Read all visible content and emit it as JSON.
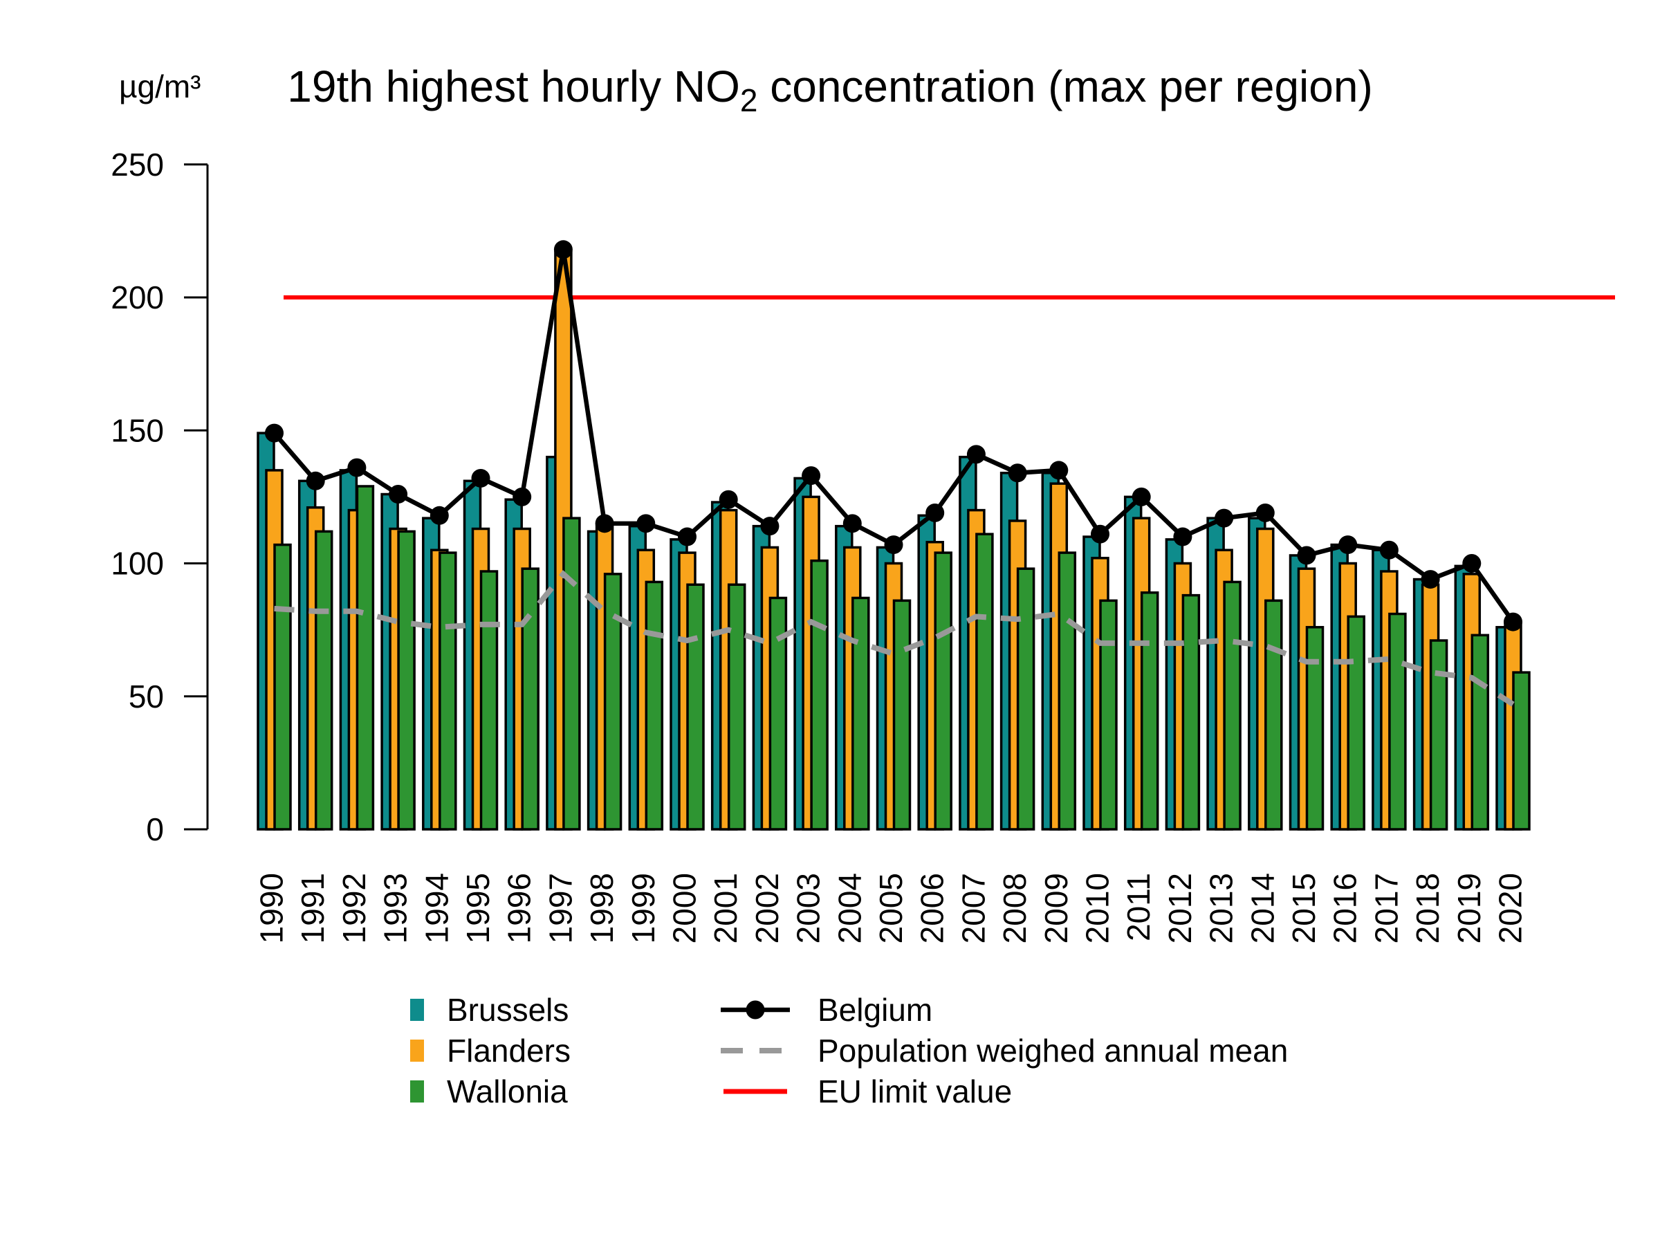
{
  "title": {
    "prefix": "19th highest hourly NO",
    "subscript": "2",
    "suffix": " concentration (max per region)"
  },
  "y_axis": {
    "unit": "µg/m³",
    "ticks": [
      0,
      50,
      100,
      150,
      200,
      250
    ]
  },
  "legend": {
    "bars": [
      {
        "label": "Brussels",
        "color_key": "brussels"
      },
      {
        "label": "Flanders",
        "color_key": "flanders"
      },
      {
        "label": "Wallonia",
        "color_key": "wallonia"
      }
    ],
    "lines": [
      {
        "label": "Belgium",
        "style": "solid-dot",
        "color_key": "belgium"
      },
      {
        "label": "Population weighed annual mean",
        "style": "dashed",
        "color_key": "pop_mean"
      },
      {
        "label": "EU limit value",
        "style": "solid",
        "color_key": "eu_limit"
      }
    ]
  },
  "colors": {
    "brussels": "#0E8C8C",
    "flanders": "#F9A41B",
    "wallonia": "#2E9532",
    "belgium": "#000000",
    "pop_mean": "#999999",
    "eu_limit": "#FF0000"
  },
  "chart_data": {
    "type": "bar",
    "title": "19th highest hourly NO₂ concentration (max per region)",
    "ylabel": "µg/m³",
    "ylim": [
      0,
      250
    ],
    "grid": false,
    "legend_position": "bottom",
    "categories": [
      1990,
      1991,
      1992,
      1993,
      1994,
      1995,
      1996,
      1997,
      1998,
      1999,
      2000,
      2001,
      2002,
      2003,
      2004,
      2005,
      2006,
      2007,
      2008,
      2009,
      2010,
      2011,
      2012,
      2013,
      2014,
      2015,
      2016,
      2017,
      2018,
      2019,
      2020
    ],
    "series": [
      {
        "name": "Brussels",
        "color_key": "brussels",
        "values": [
          149,
          131,
          135,
          126,
          117,
          131,
          124,
          140,
          112,
          114,
          109,
          123,
          114,
          132,
          114,
          106,
          118,
          140,
          134,
          134,
          110,
          125,
          109,
          117,
          117,
          103,
          107,
          105,
          94,
          99,
          76
        ]
      },
      {
        "name": "Flanders",
        "color_key": "flanders",
        "values": [
          135,
          121,
          120,
          113,
          105,
          113,
          113,
          217,
          114,
          105,
          104,
          120,
          106,
          125,
          106,
          100,
          108,
          120,
          116,
          130,
          102,
          117,
          100,
          105,
          113,
          98,
          100,
          97,
          92,
          96,
          78
        ]
      },
      {
        "name": "Wallonia",
        "color_key": "wallonia",
        "values": [
          107,
          112,
          129,
          112,
          104,
          97,
          98,
          117,
          96,
          93,
          92,
          92,
          87,
          101,
          87,
          86,
          104,
          111,
          98,
          104,
          86,
          89,
          88,
          93,
          86,
          76,
          80,
          81,
          71,
          73,
          59
        ]
      }
    ],
    "line_series": [
      {
        "name": "Belgium",
        "color_key": "belgium",
        "style": "solid-dot",
        "values": [
          149,
          131,
          136,
          126,
          118,
          132,
          125,
          218,
          115,
          115,
          110,
          124,
          114,
          133,
          115,
          107,
          119,
          141,
          134,
          135,
          111,
          125,
          110,
          117,
          119,
          103,
          107,
          105,
          94,
          100,
          78
        ]
      },
      {
        "name": "Population weighed annual mean",
        "color_key": "pop_mean",
        "style": "dashed",
        "values": [
          83,
          82,
          82,
          78,
          76,
          77,
          77,
          96,
          82,
          74,
          71,
          75,
          70,
          78,
          71,
          66,
          72,
          80,
          79,
          81,
          70,
          70,
          70,
          71,
          69,
          63,
          63,
          64,
          59,
          57,
          47
        ]
      }
    ],
    "reference_line": {
      "name": "EU limit value",
      "color_key": "eu_limit",
      "value": 200
    }
  }
}
